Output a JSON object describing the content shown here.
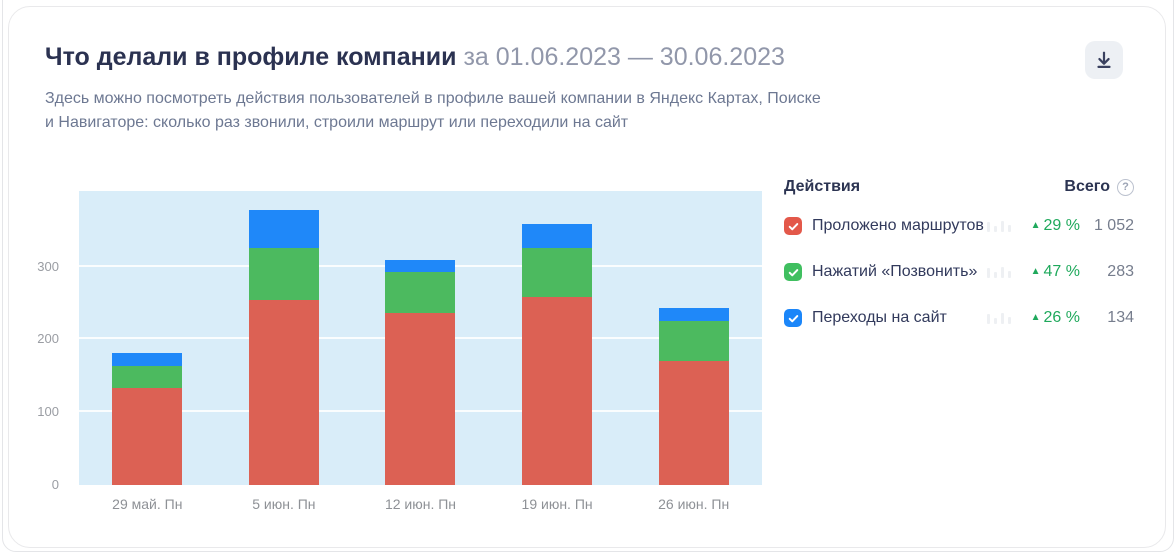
{
  "card": {
    "title": "Что делали в профиле компании",
    "period": "за 01.06.2023 — 30.06.2023",
    "subtitle_line1": "Здесь можно посмотреть действия пользователей в профиле вашей компании в Яндекс Картах, Поиске",
    "subtitle_line2": "и Навигаторе: сколько раз звонили, строили маршрут или переходили на сайт"
  },
  "legend": {
    "header_actions": "Действия",
    "header_total": "Всего",
    "help_glyph": "?",
    "trend_arrow": "▲",
    "items": [
      {
        "label": "Проложено маршрутов",
        "color": "#e3584a",
        "trend": "29 %",
        "total": "1 052"
      },
      {
        "label": "Нажатий «Позвонить»",
        "color": "#40bf60",
        "trend": "47 %",
        "total": "283"
      },
      {
        "label": "Переходы на сайт",
        "color": "#1b86f9",
        "trend": "26 %",
        "total": "134"
      }
    ]
  },
  "chart_data": {
    "type": "bar",
    "stacked": true,
    "title": "Что делали в профиле компании за 01.06.2023 — 30.06.2023",
    "categories": [
      "29 май. Пн",
      "5 июн. Пн",
      "12 июн. Пн",
      "19 июн. Пн",
      "26 июн. Пн"
    ],
    "series": [
      {
        "name": "Проложено маршрутов",
        "color": "#dc6154",
        "values": [
          133,
          254,
          236,
          258,
          171
        ]
      },
      {
        "name": "Нажатий «Позвонить»",
        "color": "#4cba5f",
        "values": [
          31,
          72,
          57,
          68,
          55
        ]
      },
      {
        "name": "Переходы на сайт",
        "color": "#1f88f9",
        "values": [
          17,
          52,
          16,
          32,
          17
        ]
      }
    ],
    "totals_per_bar": [
      181,
      378,
      309,
      358,
      243
    ],
    "yticks": [
      0,
      100,
      200,
      300
    ],
    "ymax": 404,
    "xlabel": "",
    "ylabel": "",
    "grid": true,
    "plot_bg": "#d9edf9",
    "legend_position": "right"
  }
}
